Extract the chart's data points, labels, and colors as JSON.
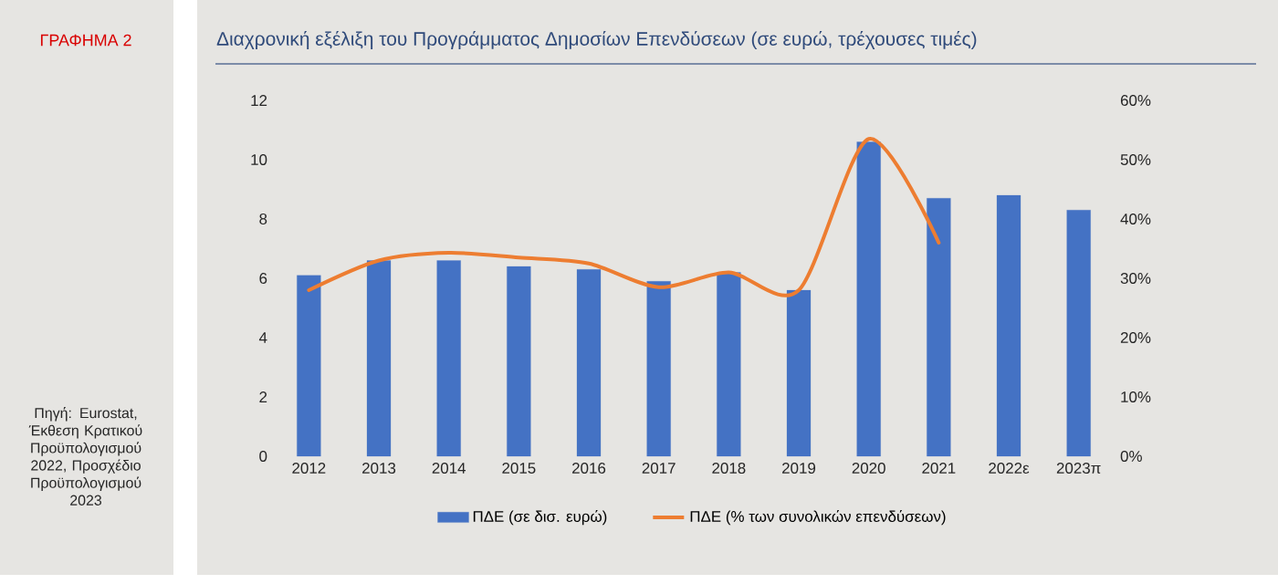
{
  "chart_data": {
    "type": "bar",
    "title": "Διαχρονική εξέλιξη του Προγράμματος Δημοσίων Επενδύσεων (σε ευρώ, τρέχουσες τιμές)",
    "annotations": [
      "ΓΡΑΦΗΜΑ 2",
      "Πηγή: Eurostat, Έκθεση Κρατικού Προϋπολογισμού 2022, Προσχέδιο Προϋπολογισμού 2023"
    ],
    "categories": [
      "2012",
      "2013",
      "2014",
      "2015",
      "2016",
      "2017",
      "2018",
      "2019",
      "2020",
      "2021",
      "2022ε",
      "2023π"
    ],
    "series": [
      {
        "name": "ΠΔΕ (σε δισ. ευρώ)",
        "color": "#4472c4",
        "values": [
          6.1,
          6.6,
          6.6,
          6.4,
          6.3,
          5.9,
          6.2,
          5.6,
          10.6,
          8.7,
          8.8,
          8.3
        ]
      },
      {
        "name": "ΠΔΕ (% των συνολικών επενδύσεων)",
        "type": "line",
        "axis": "y2",
        "color": "#ed7d31",
        "values": [
          28,
          33,
          34.3,
          33.5,
          32.5,
          28.5,
          31,
          28,
          53.5,
          36,
          null,
          null
        ]
      }
    ],
    "ylim": [
      0,
      12
    ],
    "yticks": [
      0,
      2,
      4,
      6,
      8,
      10,
      12
    ],
    "y2lim": [
      0,
      60
    ],
    "y2ticks": [
      {
        "value": 0,
        "label": "0%"
      },
      {
        "value": 10,
        "label": "10%"
      },
      {
        "value": 20,
        "label": "20%"
      },
      {
        "value": 30,
        "label": "30%"
      },
      {
        "value": 40,
        "label": "40%"
      },
      {
        "value": 50,
        "label": "50%"
      },
      {
        "value": 60,
        "label": "60%"
      }
    ],
    "legend": "bottom"
  }
}
